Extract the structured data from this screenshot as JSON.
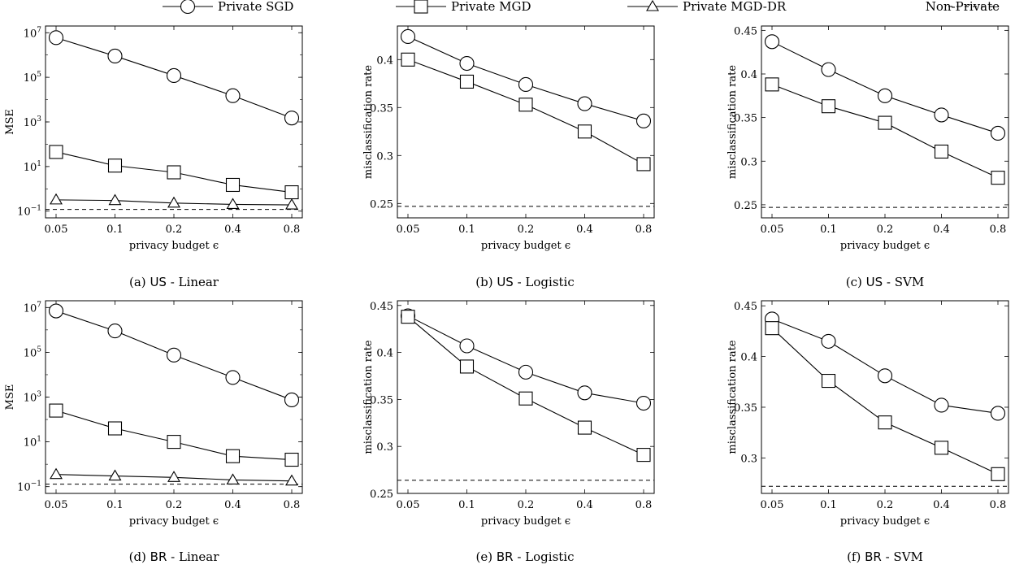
{
  "legend": {
    "items": [
      {
        "label": "Private SGD",
        "marker": "circle",
        "dashed": false
      },
      {
        "label": "Private MGD",
        "marker": "square",
        "dashed": false
      },
      {
        "label": "Private MGD-DR",
        "marker": "triangle",
        "dashed": false
      },
      {
        "label": "Non-Private",
        "marker": "none",
        "dashed": true
      }
    ]
  },
  "chart_data": [
    {
      "type": "line",
      "caption": {
        "prefix": "(a)",
        "tag": "US",
        "suffix": "- Linear"
      },
      "xlabel": "privacy budget ϵ",
      "ylabel": "MSE",
      "yscale": "log",
      "ylim": [
        0.05,
        20000000
      ],
      "categories": [
        "0.05",
        "0.1",
        "0.2",
        "0.4",
        "0.8"
      ],
      "y_ticks": [
        0.1,
        10,
        1000,
        100000,
        10000000
      ],
      "y_tick_labels": [
        {
          "base": "10",
          "exp": "−1"
        },
        {
          "base": "10",
          "exp": "1"
        },
        {
          "base": "10",
          "exp": "3"
        },
        {
          "base": "10",
          "exp": "5"
        },
        {
          "base": "10",
          "exp": "7"
        }
      ],
      "series": [
        {
          "name": "Private SGD",
          "marker": "circle",
          "values": [
            6000000,
            900000,
            120000,
            15000,
            1500
          ]
        },
        {
          "name": "Private MGD",
          "marker": "square",
          "values": [
            45,
            11,
            5.5,
            1.5,
            0.7
          ]
        },
        {
          "name": "Private MGD-DR",
          "marker": "triangle",
          "values": [
            0.32,
            0.3,
            0.23,
            0.2,
            0.19
          ]
        }
      ],
      "baseline": 0.12,
      "grid": false
    },
    {
      "type": "line",
      "caption": {
        "prefix": "(b)",
        "tag": "US",
        "suffix": "- Logistic"
      },
      "xlabel": "privacy budget ϵ",
      "ylabel": "misclassification rate",
      "yscale": "linear",
      "ylim": [
        0.235,
        0.435
      ],
      "categories": [
        "0.05",
        "0.1",
        "0.2",
        "0.4",
        "0.8"
      ],
      "y_ticks": [
        0.25,
        0.3,
        0.35,
        0.4
      ],
      "y_tick_labels": [
        "0.25",
        "0.3",
        "0.35",
        "0.4"
      ],
      "series": [
        {
          "name": "Private SGD",
          "marker": "circle",
          "values": [
            0.424,
            0.396,
            0.374,
            0.354,
            0.336
          ]
        },
        {
          "name": "Private MGD",
          "marker": "square",
          "values": [
            0.4,
            0.377,
            0.353,
            0.325,
            0.291
          ]
        }
      ],
      "baseline": 0.247,
      "grid": false
    },
    {
      "type": "line",
      "caption": {
        "prefix": "(c)",
        "tag": "US",
        "suffix": "- SVM"
      },
      "xlabel": "privacy budget ϵ",
      "ylabel": "misclassification rate",
      "yscale": "linear",
      "ylim": [
        0.235,
        0.455
      ],
      "categories": [
        "0.05",
        "0.1",
        "0.2",
        "0.4",
        "0.8"
      ],
      "y_ticks": [
        0.25,
        0.3,
        0.35,
        0.4,
        0.45
      ],
      "y_tick_labels": [
        "0.25",
        "0.3",
        "0.35",
        "0.4",
        "0.45"
      ],
      "series": [
        {
          "name": "Private SGD",
          "marker": "circle",
          "values": [
            0.437,
            0.405,
            0.375,
            0.353,
            0.332
          ]
        },
        {
          "name": "Private MGD",
          "marker": "square",
          "values": [
            0.388,
            0.363,
            0.344,
            0.311,
            0.281
          ]
        }
      ],
      "baseline": 0.247,
      "grid": false
    },
    {
      "type": "line",
      "caption": {
        "prefix": "(d)",
        "tag": "BR",
        "suffix": "- Linear"
      },
      "xlabel": "privacy budget ϵ",
      "ylabel": "MSE",
      "yscale": "log",
      "ylim": [
        0.05,
        20000000
      ],
      "categories": [
        "0.05",
        "0.1",
        "0.2",
        "0.4",
        "0.8"
      ],
      "y_ticks": [
        0.1,
        10,
        1000,
        100000,
        10000000
      ],
      "y_tick_labels": [
        {
          "base": "10",
          "exp": "−1"
        },
        {
          "base": "10",
          "exp": "1"
        },
        {
          "base": "10",
          "exp": "3"
        },
        {
          "base": "10",
          "exp": "5"
        },
        {
          "base": "10",
          "exp": "7"
        }
      ],
      "series": [
        {
          "name": "Private SGD",
          "marker": "circle",
          "values": [
            7000000,
            900000,
            75000,
            7500,
            750
          ]
        },
        {
          "name": "Private MGD",
          "marker": "square",
          "values": [
            250,
            40,
            10,
            2.3,
            1.6
          ]
        },
        {
          "name": "Private MGD-DR",
          "marker": "triangle",
          "values": [
            0.35,
            0.3,
            0.26,
            0.2,
            0.18
          ]
        }
      ],
      "baseline": 0.13,
      "grid": false
    },
    {
      "type": "line",
      "caption": {
        "prefix": "(e)",
        "tag": "BR",
        "suffix": "- Logistic"
      },
      "xlabel": "privacy budget ϵ",
      "ylabel": "misclassification rate",
      "yscale": "linear",
      "ylim": [
        0.25,
        0.455
      ],
      "categories": [
        "0.05",
        "0.1",
        "0.2",
        "0.4",
        "0.8"
      ],
      "y_ticks": [
        0.25,
        0.3,
        0.35,
        0.4,
        0.45
      ],
      "y_tick_labels": [
        "0.25",
        "0.3",
        "0.35",
        "0.4",
        "0.45"
      ],
      "series": [
        {
          "name": "Private SGD",
          "marker": "circle",
          "values": [
            0.439,
            0.407,
            0.379,
            0.357,
            0.346
          ]
        },
        {
          "name": "Private MGD",
          "marker": "square",
          "values": [
            0.438,
            0.385,
            0.351,
            0.32,
            0.291
          ]
        }
      ],
      "baseline": 0.264,
      "grid": false
    },
    {
      "type": "line",
      "caption": {
        "prefix": "(f)",
        "tag": "BR",
        "suffix": "- SVM"
      },
      "xlabel": "privacy budget ϵ",
      "ylabel": "misclassification rate",
      "yscale": "linear",
      "ylim": [
        0.265,
        0.455
      ],
      "categories": [
        "0.05",
        "0.1",
        "0.2",
        "0.4",
        "0.8"
      ],
      "y_ticks": [
        0.3,
        0.35,
        0.4,
        0.45
      ],
      "y_tick_labels": [
        "0.3",
        "0.35",
        "0.4",
        "0.45"
      ],
      "series": [
        {
          "name": "Private SGD",
          "marker": "circle",
          "values": [
            0.437,
            0.415,
            0.381,
            0.352,
            0.344
          ]
        },
        {
          "name": "Private MGD",
          "marker": "square",
          "values": [
            0.428,
            0.376,
            0.335,
            0.31,
            0.284
          ]
        }
      ],
      "baseline": 0.272,
      "grid": false
    }
  ]
}
